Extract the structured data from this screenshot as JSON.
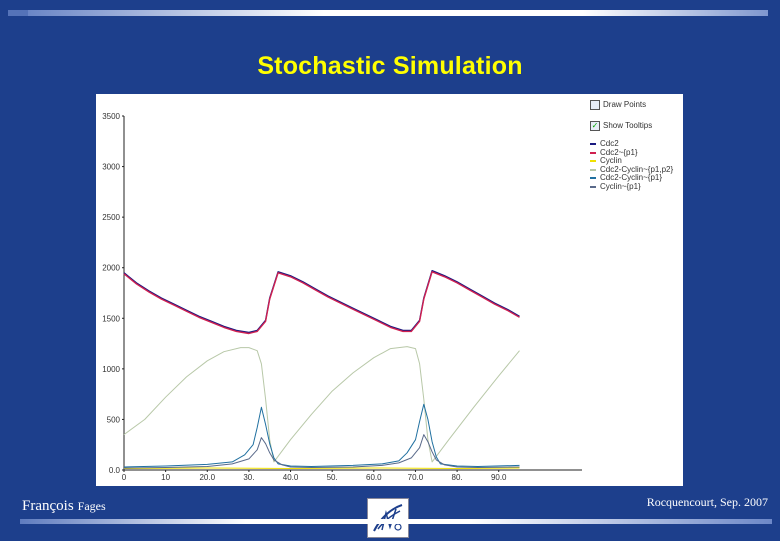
{
  "slide": {
    "title": "Stochastic Simulation",
    "author_first": "François",
    "author_last": "Fages",
    "venue": "Rocquencourt, Sep. 2007"
  },
  "legend": {
    "draw_points_label": "Draw Points",
    "draw_points_checked": false,
    "show_tooltips_label": "Show Tooltips",
    "show_tooltips_checked": true
  },
  "colors": {
    "background": "#1d3f8c",
    "title": "#ffff00"
  },
  "chart_data": {
    "type": "line",
    "title": "",
    "xlabel": "",
    "ylabel": "",
    "xlim": [
      0,
      110
    ],
    "ylim": [
      0,
      3500
    ],
    "x_ticks": [
      0,
      10,
      20,
      30,
      40,
      50,
      60,
      70,
      80,
      90
    ],
    "x_tick_labels": [
      "0",
      "10",
      "20.0",
      "30.",
      "40.0",
      "50.",
      "60.0",
      "70.0",
      "80.",
      "90.0"
    ],
    "y_ticks": [
      0,
      500,
      1000,
      1500,
      2000,
      2500,
      3000,
      3500
    ],
    "y_tick_labels": [
      "0.0",
      "500",
      "1000",
      "1500",
      "2000",
      "2500",
      "3000",
      "3500"
    ],
    "legend_position": "top-right",
    "grid": false,
    "series": [
      {
        "name": "Cdc2",
        "color": "#1a1a80",
        "x": [
          0,
          3,
          6,
          9,
          12,
          15,
          18,
          21,
          24,
          27,
          30,
          32,
          34,
          35,
          37,
          40,
          43,
          46,
          49,
          52,
          55,
          58,
          61,
          64,
          67,
          69,
          71,
          72,
          74,
          77,
          80,
          83,
          86,
          89,
          92,
          95
        ],
        "y": [
          1950,
          1850,
          1770,
          1700,
          1640,
          1580,
          1520,
          1470,
          1420,
          1380,
          1360,
          1380,
          1480,
          1700,
          1960,
          1920,
          1860,
          1790,
          1720,
          1660,
          1600,
          1540,
          1480,
          1420,
          1380,
          1380,
          1480,
          1700,
          1970,
          1920,
          1860,
          1790,
          1720,
          1650,
          1590,
          1520
        ]
      },
      {
        "name": "Cdc2~{p1}",
        "color": "#d02050",
        "x": [
          0,
          3,
          6,
          9,
          12,
          15,
          18,
          21,
          24,
          27,
          30,
          32,
          34,
          35,
          37,
          40,
          43,
          46,
          49,
          52,
          55,
          58,
          61,
          64,
          67,
          69,
          71,
          72,
          74,
          77,
          80,
          83,
          86,
          89,
          92,
          95
        ],
        "y": [
          1940,
          1840,
          1760,
          1690,
          1630,
          1570,
          1510,
          1460,
          1410,
          1370,
          1350,
          1370,
          1470,
          1690,
          1950,
          1910,
          1850,
          1780,
          1710,
          1650,
          1590,
          1530,
          1470,
          1410,
          1370,
          1370,
          1470,
          1690,
          1960,
          1910,
          1850,
          1780,
          1710,
          1640,
          1580,
          1510
        ]
      },
      {
        "name": "Cyclin",
        "color": "#f0e000",
        "x": [
          0,
          20,
          40,
          60,
          80,
          95
        ],
        "y": [
          15,
          20,
          15,
          20,
          15,
          20
        ]
      },
      {
        "name": "Cdc2-Cyclin~{p1,p2}",
        "color": "#b8c8a8",
        "x": [
          0,
          5,
          10,
          15,
          20,
          24,
          28,
          30,
          32,
          33,
          34,
          35,
          36,
          40,
          45,
          50,
          55,
          60,
          64,
          68,
          70,
          71,
          72,
          73,
          74,
          78,
          84,
          90,
          95
        ],
        "y": [
          350,
          500,
          720,
          920,
          1080,
          1170,
          1210,
          1210,
          1180,
          1050,
          700,
          300,
          80,
          300,
          550,
          780,
          960,
          1110,
          1200,
          1220,
          1200,
          1050,
          700,
          300,
          80,
          300,
          620,
          930,
          1180
        ]
      },
      {
        "name": "Cdc2-Cyclin~{p1}",
        "color": "#2070a0",
        "x": [
          0,
          10,
          20,
          26,
          29,
          31,
          32,
          33,
          34,
          35,
          36,
          37,
          40,
          45,
          55,
          62,
          66,
          68,
          70,
          71,
          72,
          73,
          74,
          75,
          76,
          80,
          85,
          95
        ],
        "y": [
          30,
          40,
          55,
          80,
          150,
          250,
          420,
          620,
          450,
          260,
          120,
          60,
          40,
          35,
          45,
          60,
          90,
          170,
          300,
          480,
          650,
          500,
          280,
          130,
          60,
          40,
          35,
          45
        ]
      },
      {
        "name": "Cyclin~{p1}",
        "color": "#5a6a8a",
        "x": [
          0,
          10,
          20,
          26,
          30,
          32,
          33,
          34,
          35,
          36,
          38,
          40,
          45,
          55,
          62,
          66,
          69,
          71,
          72,
          73,
          74,
          75,
          77,
          80,
          85,
          95
        ],
        "y": [
          20,
          25,
          35,
          60,
          110,
          200,
          320,
          260,
          170,
          100,
          50,
          30,
          25,
          30,
          45,
          70,
          120,
          220,
          350,
          280,
          180,
          100,
          50,
          30,
          25,
          30
        ]
      }
    ]
  }
}
